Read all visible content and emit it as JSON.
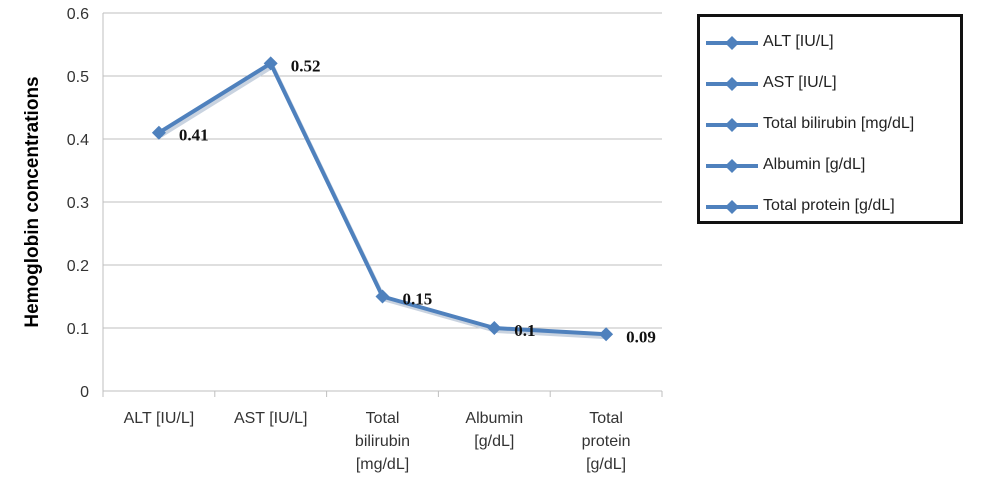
{
  "chart_data": {
    "type": "line",
    "ylabel": "Hemoglobin concentrations",
    "xlabel": "",
    "title": "",
    "ylim": [
      0,
      0.6
    ],
    "yticks": [
      "0",
      "0.1",
      "0.2",
      "0.3",
      "0.4",
      "0.5",
      "0.6"
    ],
    "categories": [
      [
        "ALT [IU/L]"
      ],
      [
        "AST [IU/L]"
      ],
      [
        "Total",
        "bilirubin",
        "[mg/dL]"
      ],
      [
        "Albumin",
        "[g/dL]"
      ],
      [
        "Total",
        "protein",
        "[g/dL]"
      ]
    ],
    "values": [
      0.41,
      0.52,
      0.15,
      0.1,
      0.09
    ],
    "data_labels": [
      "0.41",
      "0.52",
      "0.15",
      "0.1",
      "0.09"
    ],
    "grid": true,
    "legend_position": "right",
    "legend": [
      "ALT [IU/L]",
      "AST [IU/L]",
      "Total bilirubin [mg/dL]",
      "Albumin [g/dL]",
      "Total protein [g/dL]"
    ],
    "line_color": "#4F81BD"
  }
}
